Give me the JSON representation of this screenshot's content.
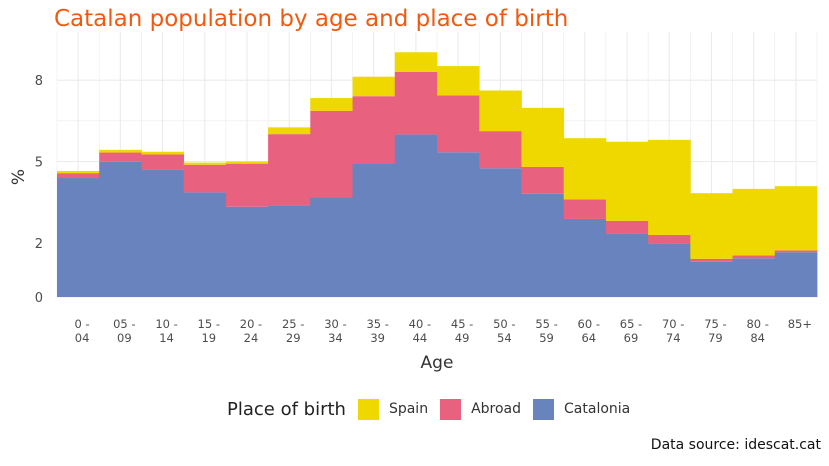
{
  "chart_data": {
    "type": "bar",
    "stacked": true,
    "title": "Catalan population by age and place of birth",
    "xlabel": "Age",
    "ylabel": "%",
    "ylim": [
      0,
      9.0
    ],
    "yticks": [
      0,
      2,
      5,
      8
    ],
    "grid": true,
    "categories": [
      "0 -\n04",
      "05 -\n09",
      "10 -\n14",
      "15 -\n19",
      "20 -\n24",
      "25 -\n29",
      "30 -\n34",
      "35 -\n39",
      "40 -\n44",
      "45 -\n49",
      "50 -\n54",
      "55 -\n59",
      "60 -\n64",
      "65 -\n69",
      "70 -\n74",
      "75 -\n79",
      "80 -\n84",
      "85+"
    ],
    "series": [
      {
        "name": "Catalonia",
        "color": "#6883bd",
        "values": [
          4.39,
          4.99,
          4.7,
          3.86,
          3.33,
          3.38,
          3.67,
          4.94,
          6.0,
          5.34,
          4.75,
          3.81,
          2.88,
          2.34,
          1.97,
          1.3,
          1.43,
          1.65
        ]
      },
      {
        "name": "Abroad",
        "color": "#e8617e",
        "values": [
          0.18,
          0.34,
          0.56,
          1.02,
          1.59,
          2.63,
          3.2,
          2.47,
          2.31,
          2.1,
          1.37,
          0.99,
          0.72,
          0.47,
          0.32,
          0.11,
          0.1,
          0.07
        ]
      },
      {
        "name": "Spain",
        "color": "#efd700",
        "values": [
          0.08,
          0.1,
          0.1,
          0.08,
          0.08,
          0.25,
          0.47,
          0.72,
          0.72,
          1.08,
          1.5,
          2.18,
          2.26,
          2.92,
          3.51,
          2.42,
          2.46,
          2.37
        ]
      }
    ],
    "legend": {
      "title": "Place of birth",
      "position": "bottom",
      "order": [
        "Spain",
        "Abroad",
        "Catalonia"
      ]
    }
  },
  "tick_labels_y": [
    "0",
    "2",
    "5",
    "8"
  ],
  "caption": "Data source: idescat.cat",
  "colors": {
    "title": "#f05a10",
    "grid": "#ebebeb"
  }
}
